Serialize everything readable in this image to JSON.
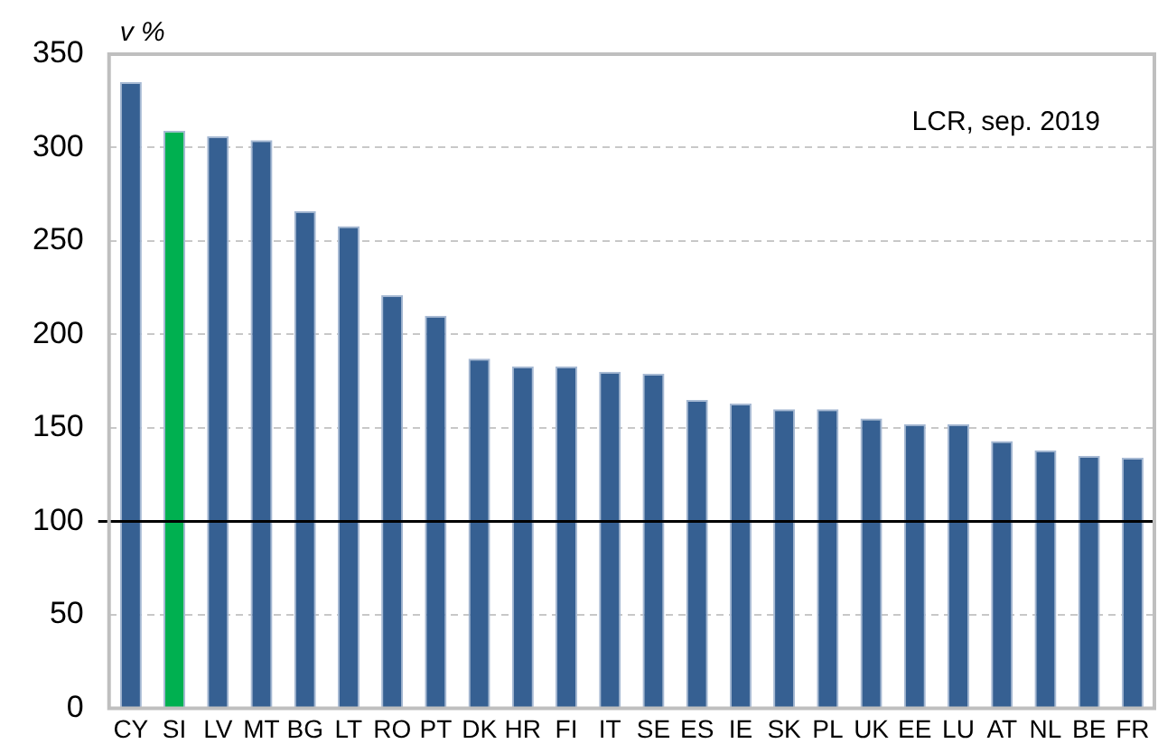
{
  "chart_data": {
    "type": "bar",
    "ylabel": "v %",
    "annotations": [
      "LCR, sep. 2019"
    ],
    "categories": [
      "CY",
      "SI",
      "LV",
      "MT",
      "BG",
      "LT",
      "RO",
      "PT",
      "DK",
      "HR",
      "FI",
      "IT",
      "SE",
      "ES",
      "IE",
      "SK",
      "PL",
      "UK",
      "EE",
      "LU",
      "AT",
      "NL",
      "BE",
      "FR"
    ],
    "values": [
      335,
      309,
      306,
      304,
      266,
      258,
      221,
      210,
      187,
      183,
      183,
      180,
      179,
      165,
      163,
      160,
      160,
      155,
      152,
      152,
      143,
      138,
      135,
      134
    ],
    "colors": [
      "#366092",
      "#00b050",
      "#366092",
      "#366092",
      "#366092",
      "#366092",
      "#366092",
      "#366092",
      "#366092",
      "#366092",
      "#366092",
      "#366092",
      "#366092",
      "#366092",
      "#366092",
      "#366092",
      "#366092",
      "#366092",
      "#366092",
      "#366092",
      "#366092",
      "#366092",
      "#366092",
      "#366092"
    ],
    "ylim": [
      0,
      350
    ],
    "yticks": [
      0,
      50,
      100,
      150,
      200,
      250,
      300,
      350
    ],
    "grid": "y",
    "legend": false,
    "ref_lines": [
      {
        "axis": "y",
        "value": 100,
        "color": "#000000"
      }
    ]
  }
}
